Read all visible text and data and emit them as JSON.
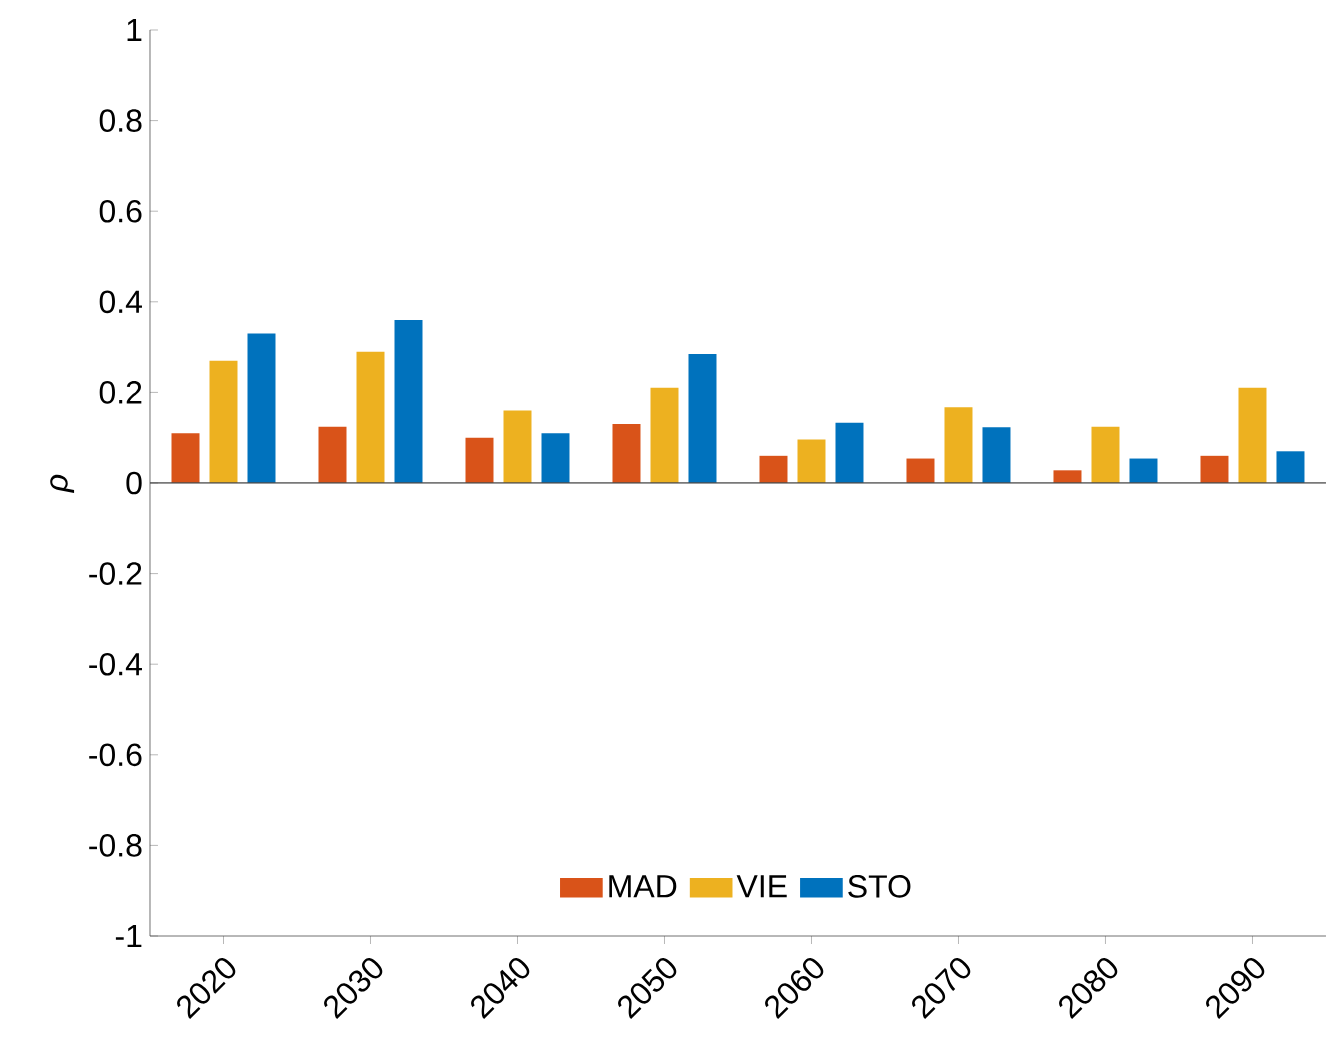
{
  "chart_data": {
    "type": "bar",
    "ylabel": "ρ",
    "categories": [
      "2020",
      "2030",
      "2040",
      "2050",
      "2060",
      "2070",
      "2080",
      "2090"
    ],
    "series": [
      {
        "name": "MAD",
        "color": "#d95319",
        "values": [
          0.11,
          0.124,
          0.1,
          0.13,
          0.06,
          0.054,
          0.028,
          0.06
        ]
      },
      {
        "name": "VIE",
        "color": "#edb120",
        "values": [
          0.27,
          0.29,
          0.16,
          0.21,
          0.096,
          0.167,
          0.124,
          0.21
        ]
      },
      {
        "name": "STO",
        "color": "#0072bd",
        "values": [
          0.33,
          0.36,
          0.11,
          0.285,
          0.133,
          0.123,
          0.054,
          0.07
        ]
      }
    ],
    "ylim": [
      -1,
      1
    ],
    "yticks": [
      -1,
      -0.8,
      -0.6,
      -0.4,
      -0.2,
      0,
      0.2,
      0.4,
      0.6,
      0.8,
      1
    ],
    "legend": "bottom"
  }
}
